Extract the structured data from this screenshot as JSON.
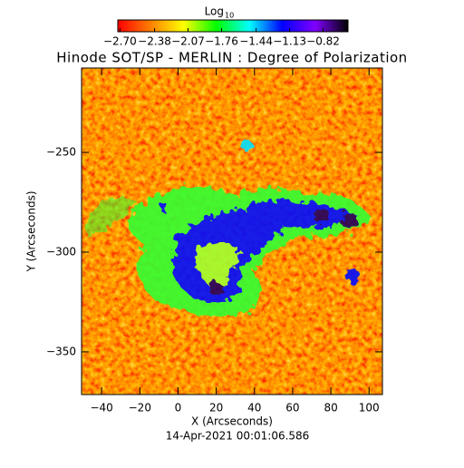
{
  "chart_data": {
    "type": "heatmap",
    "title": "Hinode SOT/SP - MERLIN : Degree of Polarization",
    "colorbar": {
      "title": "Log",
      "title_subscript": "10",
      "colormap": [
        "#ff0000",
        "#ff8000",
        "#ffff00",
        "#00ff00",
        "#00ffff",
        "#0000ff",
        "#8000ff",
        "#000000"
      ],
      "clim": [
        -2.72,
        -0.59
      ],
      "ticks": [
        {
          "value": -2.7,
          "label": "−2.70"
        },
        {
          "value": -2.38,
          "label": "−2.38"
        },
        {
          "value": -2.07,
          "label": "−2.07"
        },
        {
          "value": -1.76,
          "label": "−1.76"
        },
        {
          "value": -1.44,
          "label": "−1.44"
        },
        {
          "value": -1.13,
          "label": "−1.13"
        },
        {
          "value": -0.82,
          "label": "−0.82"
        }
      ]
    },
    "x_label": "X (Arcseconds)",
    "y_label": "Y (Arcseconds)",
    "footer": "14-Apr-2021 00:01:06.586",
    "xlim": [
      -50.5,
      107
    ],
    "ylim": [
      -371.4,
      -207.7
    ],
    "xticks": [
      {
        "value": -40,
        "label": "−40"
      },
      {
        "value": -20,
        "label": "−20"
      },
      0,
      20,
      40,
      60,
      80,
      100
    ],
    "yticks": [
      {
        "value": -350,
        "label": "−350"
      },
      {
        "value": -300,
        "label": "−300"
      },
      {
        "value": -250,
        "label": "−250"
      }
    ]
  }
}
